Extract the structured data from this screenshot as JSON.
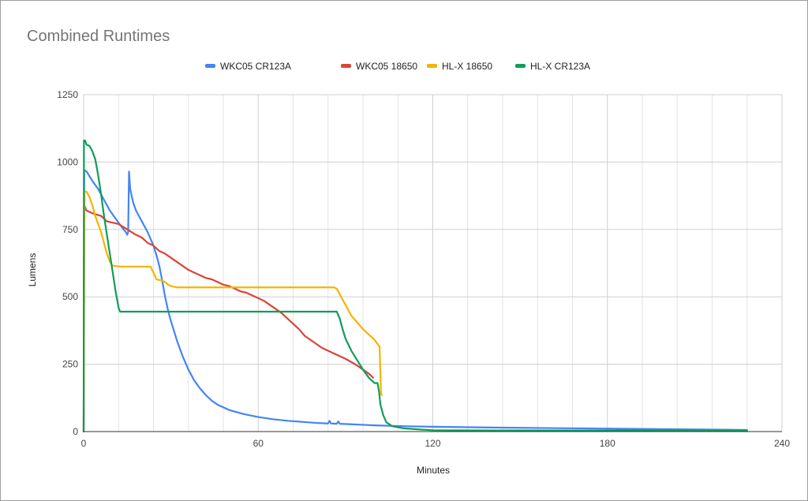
{
  "chart_data": {
    "type": "line",
    "title": "Combined Runtimes",
    "xlabel": "Minutes",
    "ylabel": "Lumens",
    "xlim": [
      0,
      240
    ],
    "ylim": [
      0,
      1250
    ],
    "x_ticks": [
      0,
      60,
      120,
      180,
      240
    ],
    "x_tick_labels": [
      "0",
      "60",
      "120",
      "180",
      "240"
    ],
    "x_minor_gridline_step": 12,
    "y_ticks": [
      0,
      250,
      500,
      750,
      1000,
      1250
    ],
    "y_tick_labels": [
      "0",
      "250",
      "500",
      "750",
      "1000",
      "1250"
    ],
    "grid": true,
    "legend_position": "top",
    "series": [
      {
        "name": "WKC05 CR123A",
        "color": "#4285f4",
        "points": [
          [
            0,
            0
          ],
          [
            0.2,
            970
          ],
          [
            1,
            965
          ],
          [
            3,
            930
          ],
          [
            5,
            900
          ],
          [
            7,
            860
          ],
          [
            9,
            820
          ],
          [
            11,
            790
          ],
          [
            13,
            760
          ],
          [
            14.5,
            740
          ],
          [
            15,
            730
          ],
          [
            15.3,
            740
          ],
          [
            15.6,
            965
          ],
          [
            16,
            900
          ],
          [
            17,
            850
          ],
          [
            18,
            820
          ],
          [
            19,
            800
          ],
          [
            20,
            780
          ],
          [
            21,
            760
          ],
          [
            22,
            740
          ],
          [
            23,
            715
          ],
          [
            24,
            690
          ],
          [
            25,
            655
          ],
          [
            26,
            615
          ],
          [
            27,
            560
          ],
          [
            28,
            500
          ],
          [
            29,
            450
          ],
          [
            30,
            410
          ],
          [
            32,
            340
          ],
          [
            34,
            280
          ],
          [
            36,
            230
          ],
          [
            38,
            190
          ],
          [
            40,
            160
          ],
          [
            42,
            135
          ],
          [
            44,
            115
          ],
          [
            46,
            100
          ],
          [
            48,
            90
          ],
          [
            50,
            80
          ],
          [
            55,
            65
          ],
          [
            60,
            54
          ],
          [
            65,
            46
          ],
          [
            70,
            40
          ],
          [
            75,
            36
          ],
          [
            80,
            32
          ],
          [
            84,
            30
          ],
          [
            84.5,
            40
          ],
          [
            85,
            30
          ],
          [
            87,
            29
          ],
          [
            87.5,
            38
          ],
          [
            88,
            29
          ],
          [
            92,
            27
          ],
          [
            96,
            25
          ],
          [
            100,
            23
          ],
          [
            110,
            20
          ],
          [
            120,
            18
          ],
          [
            140,
            15
          ],
          [
            160,
            13
          ],
          [
            180,
            11
          ],
          [
            200,
            9
          ],
          [
            220,
            7
          ],
          [
            228,
            6
          ]
        ]
      },
      {
        "name": "WKC05 18650",
        "color": "#db4437",
        "points": [
          [
            0,
            0
          ],
          [
            0.2,
            840
          ],
          [
            1,
            820
          ],
          [
            3,
            810
          ],
          [
            6,
            800
          ],
          [
            8,
            780
          ],
          [
            12,
            770
          ],
          [
            15,
            750
          ],
          [
            18,
            730
          ],
          [
            20,
            720
          ],
          [
            22,
            700
          ],
          [
            24,
            690
          ],
          [
            26,
            670
          ],
          [
            28,
            660
          ],
          [
            30,
            645
          ],
          [
            32,
            630
          ],
          [
            34,
            615
          ],
          [
            36,
            600
          ],
          [
            38,
            590
          ],
          [
            40,
            580
          ],
          [
            42,
            570
          ],
          [
            44,
            565
          ],
          [
            46,
            555
          ],
          [
            48,
            545
          ],
          [
            50,
            540
          ],
          [
            52,
            530
          ],
          [
            54,
            520
          ],
          [
            56,
            515
          ],
          [
            58,
            505
          ],
          [
            60,
            495
          ],
          [
            62,
            485
          ],
          [
            64,
            470
          ],
          [
            66,
            455
          ],
          [
            68,
            440
          ],
          [
            70,
            420
          ],
          [
            72,
            400
          ],
          [
            74,
            380
          ],
          [
            76,
            355
          ],
          [
            78,
            340
          ],
          [
            80,
            325
          ],
          [
            82,
            310
          ],
          [
            84,
            300
          ],
          [
            86,
            290
          ],
          [
            88,
            280
          ],
          [
            90,
            270
          ],
          [
            92,
            258
          ],
          [
            94,
            245
          ],
          [
            96,
            230
          ],
          [
            98,
            215
          ],
          [
            99.5,
            200
          ]
        ]
      },
      {
        "name": "HL-X 18650",
        "color": "#f4b400",
        "points": [
          [
            0,
            0
          ],
          [
            0.3,
            890
          ],
          [
            1,
            890
          ],
          [
            2,
            870
          ],
          [
            3,
            840
          ],
          [
            4,
            800
          ],
          [
            5,
            770
          ],
          [
            6,
            740
          ],
          [
            7,
            700
          ],
          [
            8,
            660
          ],
          [
            9,
            630
          ],
          [
            10,
            615
          ],
          [
            13,
            612
          ],
          [
            23,
            612
          ],
          [
            24,
            590
          ],
          [
            25,
            565
          ],
          [
            27,
            560
          ],
          [
            28,
            555
          ],
          [
            29,
            545
          ],
          [
            30,
            540
          ],
          [
            32,
            535
          ],
          [
            86,
            535
          ],
          [
            87,
            530
          ],
          [
            88,
            510
          ],
          [
            89,
            490
          ],
          [
            90,
            470
          ],
          [
            91,
            450
          ],
          [
            92,
            430
          ],
          [
            94,
            405
          ],
          [
            96,
            380
          ],
          [
            98,
            360
          ],
          [
            100,
            340
          ],
          [
            101,
            325
          ],
          [
            101.7,
            315
          ],
          [
            102.2,
            140
          ],
          [
            102.5,
            135
          ]
        ]
      },
      {
        "name": "HL-X CR123A",
        "color": "#0f9d58",
        "points": [
          [
            0,
            0
          ],
          [
            0.1,
            1080
          ],
          [
            0.5,
            1080
          ],
          [
            1,
            1065
          ],
          [
            2,
            1060
          ],
          [
            3,
            1040
          ],
          [
            4,
            1010
          ],
          [
            5,
            950
          ],
          [
            6,
            880
          ],
          [
            7,
            800
          ],
          [
            8,
            730
          ],
          [
            9,
            660
          ],
          [
            10,
            590
          ],
          [
            11,
            520
          ],
          [
            12,
            460
          ],
          [
            12.5,
            445
          ],
          [
            20,
            445
          ],
          [
            40,
            445
          ],
          [
            60,
            445
          ],
          [
            80,
            445
          ],
          [
            87,
            445
          ],
          [
            88,
            420
          ],
          [
            89,
            380
          ],
          [
            90,
            345
          ],
          [
            92,
            300
          ],
          [
            94,
            265
          ],
          [
            96,
            230
          ],
          [
            98,
            200
          ],
          [
            100,
            180
          ],
          [
            101,
            180
          ],
          [
            101.5,
            150
          ],
          [
            102,
            100
          ],
          [
            103,
            60
          ],
          [
            104,
            35
          ],
          [
            106,
            20
          ],
          [
            110,
            12
          ],
          [
            115,
            8
          ],
          [
            120,
            5
          ],
          [
            140,
            4
          ],
          [
            160,
            4
          ],
          [
            180,
            4
          ],
          [
            200,
            4
          ],
          [
            220,
            3
          ],
          [
            228,
            3
          ]
        ]
      }
    ]
  }
}
